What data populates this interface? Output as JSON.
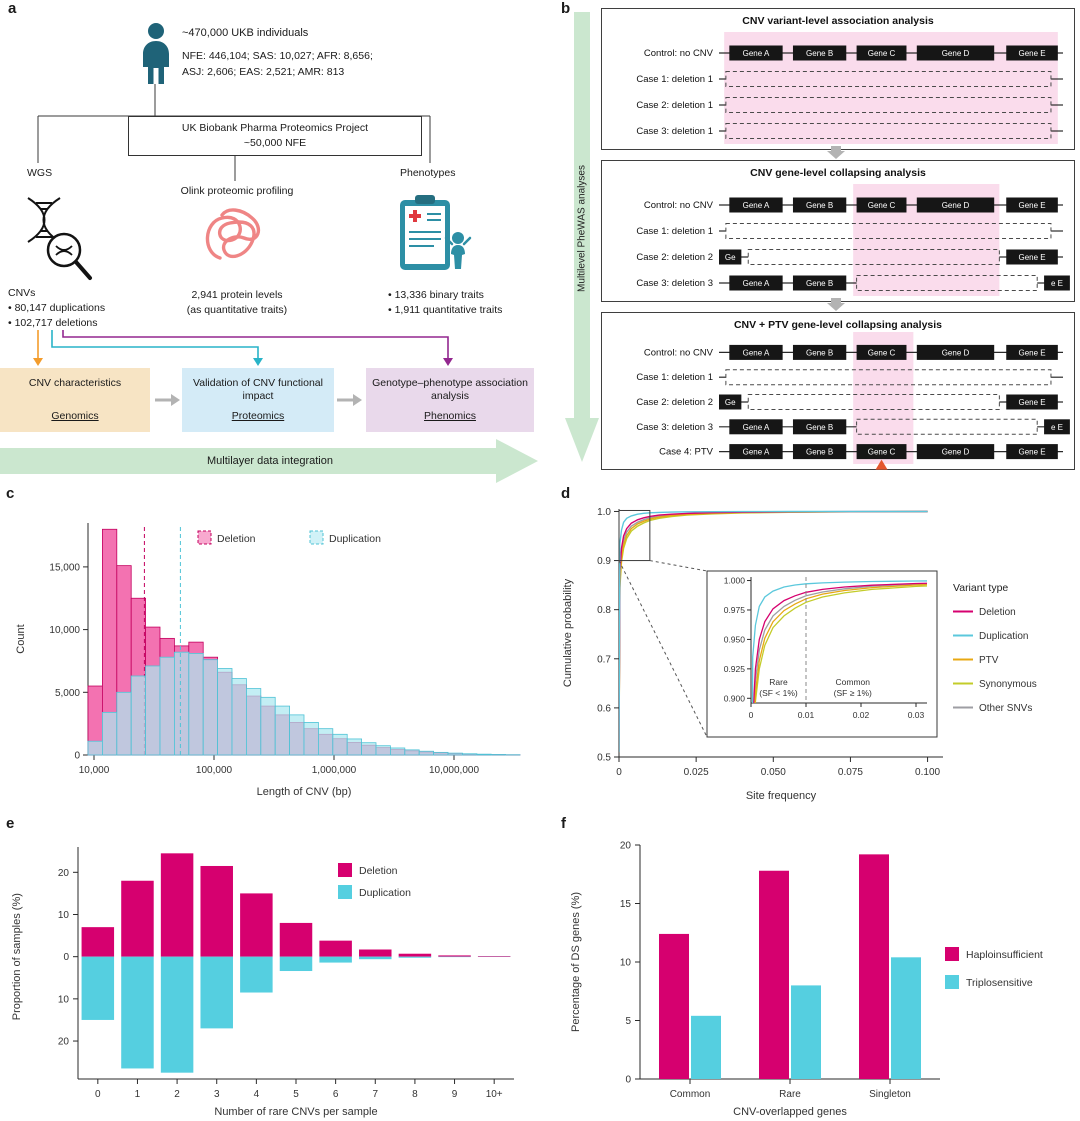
{
  "colors": {
    "magenta": "#d6006f",
    "cyan": "#55cfe0",
    "highlight_pink": "#fadcec",
    "green_arrow": "#cbe7cf",
    "orange_flow": "#f39c2c",
    "teal_flow": "#29b4c8",
    "purple_flow": "#93278f",
    "genomics_box": "#f7e4c4",
    "proteomics_box": "#d4ebf7",
    "phenomics_box": "#e9d9eb"
  },
  "panels": {
    "a": {
      "label": "a",
      "cohort_title": "~470,000 UKB individuals",
      "cohort_line1": "NFE: 446,104; SAS: 10,027; AFR: 8,656;",
      "cohort_line2": "ASJ: 2,606; EAS: 2,521; AMR: 813",
      "ppp_line1": "UK Biobank Pharma Proteomics Project",
      "ppp_line2": "~50,000 NFE",
      "wgs_label": "WGS",
      "olink_label": "Olink proteomic profiling",
      "phenotypes_label": "Phenotypes",
      "wgs_stats": [
        "CNVs",
        "• 80,147 duplications",
        "• 102,717 deletions"
      ],
      "olink_stats": [
        "2,941 protein levels",
        "(as quantitative traits)"
      ],
      "phenotype_stats": [
        "• 13,336 binary traits",
        "• 1,911 quantitative traits"
      ],
      "flow_boxes": [
        {
          "title": "CNV characteristics",
          "subtitle": "Genomics"
        },
        {
          "title": "Validation of CNV functional impact",
          "subtitle": "Proteomics"
        },
        {
          "title": "Genotype–phenotype association analysis",
          "subtitle": "Phenomics"
        }
      ],
      "integration_arrow": "Multilayer data integration"
    },
    "b": {
      "label": "b",
      "side_arrow_label": "Multilevel PheWAS analyses",
      "boxes": [
        {
          "title": "CNV variant-level association analysis",
          "highlight": [
            0.015,
            0.985
          ],
          "rows": [
            {
              "label": "Control: no CNV",
              "genes": [
                {
                  "label": "Gene A",
                  "x": 0.03,
                  "w": 0.155
                },
                {
                  "label": "Gene B",
                  "x": 0.215,
                  "w": 0.155
                },
                {
                  "label": "Gene C",
                  "x": 0.4,
                  "w": 0.145
                },
                {
                  "label": "Gene D",
                  "x": 0.575,
                  "w": 0.225
                },
                {
                  "label": "Gene E",
                  "x": 0.835,
                  "w": 0.15
                }
              ]
            },
            {
              "label": "Case 1: deletion 1",
              "del": [
                0.02,
                0.965
              ]
            },
            {
              "label": "Case 2: deletion 1",
              "del": [
                0.02,
                0.965
              ]
            },
            {
              "label": "Case 3: deletion 1",
              "del": [
                0.02,
                0.965
              ]
            }
          ]
        },
        {
          "title": "CNV gene-level collapsing analysis",
          "highlight": [
            0.39,
            0.815
          ],
          "rows": [
            {
              "label": "Control: no CNV",
              "genes": [
                {
                  "label": "Gene A",
                  "x": 0.03,
                  "w": 0.155
                },
                {
                  "label": "Gene B",
                  "x": 0.215,
                  "w": 0.155
                },
                {
                  "label": "Gene C",
                  "x": 0.4,
                  "w": 0.145
                },
                {
                  "label": "Gene D",
                  "x": 0.575,
                  "w": 0.225
                },
                {
                  "label": "Gene E",
                  "x": 0.835,
                  "w": 0.15
                }
              ]
            },
            {
              "label": "Case 1: deletion 1",
              "del": [
                0.02,
                0.965
              ]
            },
            {
              "label": "Case 2: deletion 2",
              "del": [
                0.085,
                0.815
              ],
              "genes": [
                {
                  "label": "Ge",
                  "x": 0.0,
                  "w": 0.065
                },
                {
                  "label": "Gene E",
                  "x": 0.835,
                  "w": 0.15
                }
              ]
            },
            {
              "label": "Case 3: deletion 3",
              "del": [
                0.4,
                0.925
              ],
              "genes": [
                {
                  "label": "Gene A",
                  "x": 0.03,
                  "w": 0.155
                },
                {
                  "label": "Gene B",
                  "x": 0.215,
                  "w": 0.155
                },
                {
                  "label": "e E",
                  "x": 0.945,
                  "w": 0.075
                }
              ]
            }
          ]
        },
        {
          "title": "CNV + PTV gene-level collapsing analysis",
          "highlight": [
            0.39,
            0.565
          ],
          "rows": [
            {
              "label": "Control: no CNV",
              "genes": [
                {
                  "label": "Gene A",
                  "x": 0.03,
                  "w": 0.155
                },
                {
                  "label": "Gene B",
                  "x": 0.215,
                  "w": 0.155
                },
                {
                  "label": "Gene C",
                  "x": 0.4,
                  "w": 0.145
                },
                {
                  "label": "Gene D",
                  "x": 0.575,
                  "w": 0.225
                },
                {
                  "label": "Gene E",
                  "x": 0.835,
                  "w": 0.15
                }
              ]
            },
            {
              "label": "Case 1: deletion 1",
              "del": [
                0.02,
                0.965
              ]
            },
            {
              "label": "Case 2: deletion 2",
              "del": [
                0.085,
                0.815
              ],
              "genes": [
                {
                  "label": "Ge",
                  "x": 0.0,
                  "w": 0.065
                },
                {
                  "label": "Gene E",
                  "x": 0.835,
                  "w": 0.15
                }
              ]
            },
            {
              "label": "Case 3: deletion 3",
              "del": [
                0.4,
                0.925
              ],
              "genes": [
                {
                  "label": "Gene A",
                  "x": 0.03,
                  "w": 0.155
                },
                {
                  "label": "Gene B",
                  "x": 0.215,
                  "w": 0.155
                },
                {
                  "label": "e E",
                  "x": 0.945,
                  "w": 0.075
                }
              ]
            },
            {
              "label": "Case 4: PTV",
              "ptv": 0.4725,
              "genes": [
                {
                  "label": "Gene A",
                  "x": 0.03,
                  "w": 0.155
                },
                {
                  "label": "Gene B",
                  "x": 0.215,
                  "w": 0.155
                },
                {
                  "label": "Gene C",
                  "x": 0.4,
                  "w": 0.145
                },
                {
                  "label": "Gene D",
                  "x": 0.575,
                  "w": 0.225
                },
                {
                  "label": "Gene E",
                  "x": 0.835,
                  "w": 0.15
                }
              ]
            }
          ]
        }
      ]
    },
    "c": {
      "label": "c"
    },
    "d": {
      "label": "d"
    },
    "e": {
      "label": "e"
    },
    "f": {
      "label": "f"
    }
  },
  "chart_data": [
    {
      "id": "cnv-length-histogram",
      "panel": "c",
      "type": "histogram",
      "xlabel": "Length of CNV (bp)",
      "ylabel": "Count",
      "x_scale": "log10",
      "bin_start_log10": 3.95,
      "bin_width_log10": 0.12,
      "y_max": 18500,
      "x_ticks": [
        {
          "log10": 4,
          "label": "10,000"
        },
        {
          "log10": 5,
          "label": "100,000"
        },
        {
          "log10": 6,
          "label": "1,000,000"
        },
        {
          "log10": 7,
          "label": "10,000,000"
        }
      ],
      "y_ticks": [
        {
          "value": 0,
          "label": "0"
        },
        {
          "value": 5000,
          "label": "5,000"
        },
        {
          "value": 10000,
          "label": "10,000"
        },
        {
          "value": 15000,
          "label": "15,000"
        }
      ],
      "series": [
        {
          "name": "Deletion",
          "fill": "#f263a8",
          "stroke": "#c3005f",
          "opacity": 0.9,
          "median_log10": 4.42,
          "values": [
            5500,
            18000,
            15100,
            12500,
            10200,
            9300,
            8700,
            9000,
            7800,
            6600,
            5600,
            4700,
            3900,
            3200,
            2600,
            2100,
            1650,
            1300,
            1000,
            780,
            590,
            440,
            330,
            240,
            170,
            120,
            80,
            50,
            30,
            15
          ]
        },
        {
          "name": "Duplication",
          "fill": "#ace7f0",
          "stroke": "#4fc3d6",
          "opacity": 0.72,
          "median_log10": 4.72,
          "values": [
            1100,
            3400,
            5000,
            6300,
            7100,
            7800,
            8200,
            8100,
            7600,
            6900,
            6100,
            5300,
            4600,
            3900,
            3200,
            2600,
            2100,
            1650,
            1280,
            980,
            740,
            560,
            410,
            300,
            210,
            150,
            100,
            65,
            40,
            20
          ]
        }
      ]
    },
    {
      "id": "site-frequency-cumulative",
      "panel": "d",
      "type": "line",
      "xlabel": "Site frequency",
      "ylabel": "Cumulative probability",
      "legend_title": "Variant type",
      "x_ticks": [
        {
          "value": 0,
          "label": "0"
        },
        {
          "value": 0.025,
          "label": "0.025"
        },
        {
          "value": 0.05,
          "label": "0.050"
        },
        {
          "value": 0.075,
          "label": "0.075"
        },
        {
          "value": 0.1,
          "label": "0.100"
        }
      ],
      "y_ticks": [
        {
          "value": 1.0,
          "label": "1.0"
        },
        {
          "value": 0.9,
          "label": "0.9"
        },
        {
          "value": 0.8,
          "label": "0.8"
        },
        {
          "value": 0.7,
          "label": "0.7"
        },
        {
          "value": 0.6,
          "label": "0.6"
        },
        {
          "value": 0.5,
          "label": "0.5"
        }
      ],
      "x": [
        0,
        0.0003,
        0.0008,
        0.0015,
        0.0025,
        0.004,
        0.006,
        0.008,
        0.01,
        0.013,
        0.017,
        0.022,
        0.03,
        0.04,
        0.055,
        0.075,
        0.1
      ],
      "series": [
        {
          "name": "Deletion",
          "color": "#d6006f",
          "y": [
            0.51,
            0.88,
            0.925,
            0.95,
            0.965,
            0.976,
            0.983,
            0.987,
            0.99,
            0.9925,
            0.9945,
            0.996,
            0.9975,
            0.9985,
            0.9992,
            0.9997,
            1.0
          ]
        },
        {
          "name": "Duplication",
          "color": "#5bc8dc",
          "y": [
            0.51,
            0.935,
            0.962,
            0.978,
            0.986,
            0.991,
            0.9945,
            0.9962,
            0.9972,
            0.998,
            0.9987,
            0.9992,
            0.9996,
            0.9998,
            0.9999,
            1.0,
            1.0
          ]
        },
        {
          "name": "PTV",
          "color": "#e8a813",
          "y": [
            0.51,
            0.855,
            0.905,
            0.932,
            0.951,
            0.965,
            0.9745,
            0.98,
            0.9845,
            0.9885,
            0.9915,
            0.994,
            0.9962,
            0.9978,
            0.9988,
            0.9996,
            1.0
          ]
        },
        {
          "name": "Synonymous",
          "color": "#c3cc2a",
          "y": [
            0.51,
            0.845,
            0.897,
            0.925,
            0.945,
            0.96,
            0.97,
            0.9765,
            0.9815,
            0.986,
            0.9895,
            0.9925,
            0.995,
            0.997,
            0.9983,
            0.9993,
            1.0
          ]
        },
        {
          "name": "Other SNVs",
          "color": "#9e9ea3",
          "y": [
            0.51,
            0.87,
            0.915,
            0.941,
            0.958,
            0.97,
            0.978,
            0.9832,
            0.987,
            0.9903,
            0.993,
            0.9952,
            0.997,
            0.9982,
            0.999,
            0.9996,
            1.0
          ]
        }
      ],
      "draw_order": [
        3,
        4,
        2,
        0,
        1
      ],
      "inset": {
        "x_max": 0.032,
        "y_min": 0.896,
        "x_ticks": [
          {
            "value": 0,
            "label": "0"
          },
          {
            "value": 0.01,
            "label": "0.01"
          },
          {
            "value": 0.02,
            "label": "0.02"
          },
          {
            "value": 0.03,
            "label": "0.03"
          }
        ],
        "y_ticks": [
          {
            "value": 1.0,
            "label": "1.000"
          },
          {
            "value": 0.975,
            "label": "0.975"
          },
          {
            "value": 0.95,
            "label": "0.950"
          },
          {
            "value": 0.925,
            "label": "0.925"
          },
          {
            "value": 0.9,
            "label": "0.900"
          }
        ],
        "divider_x": 0.01,
        "rare_label": [
          "Rare",
          "(SF < 1%)"
        ],
        "common_label": [
          "Common",
          "(SF ≥ 1%)"
        ]
      }
    },
    {
      "id": "rare-cnvs-per-sample",
      "panel": "e",
      "type": "bar-mirrored",
      "xlabel": "Number of rare CNVs per sample",
      "ylabel": "Proportion of samples (%)",
      "categories": [
        "0",
        "1",
        "2",
        "3",
        "4",
        "5",
        "6",
        "7",
        "8",
        "9",
        "10+"
      ],
      "y_ticks": [
        {
          "value": 20,
          "label": "20"
        },
        {
          "value": 10,
          "label": "10"
        },
        {
          "value": 0,
          "label": "0"
        },
        {
          "value": -10,
          "label": "10"
        },
        {
          "value": -20,
          "label": "20"
        }
      ],
      "series": [
        {
          "name": "Deletion",
          "direction": "up",
          "color": "#d6006f",
          "values": [
            7,
            18,
            24.5,
            21.5,
            15,
            8,
            3.8,
            1.7,
            0.7,
            0.3,
            0.15
          ]
        },
        {
          "name": "Duplication",
          "direction": "down",
          "color": "#55cfe0",
          "values": [
            15,
            26.5,
            27.5,
            17,
            8.5,
            3.4,
            1.4,
            0.6,
            0.25,
            0.1,
            0.05
          ]
        }
      ]
    },
    {
      "id": "ds-genes-percentage",
      "panel": "f",
      "type": "bar-grouped",
      "xlabel": "CNV-overlapped genes",
      "ylabel": "Percentage of DS genes (%)",
      "categories": [
        "Common",
        "Rare",
        "Singleton"
      ],
      "ylim": [
        0,
        20
      ],
      "y_ticks": [
        {
          "value": 0,
          "label": "0"
        },
        {
          "value": 5,
          "label": "5"
        },
        {
          "value": 10,
          "label": "10"
        },
        {
          "value": 15,
          "label": "15"
        },
        {
          "value": 20,
          "label": "20"
        }
      ],
      "series": [
        {
          "name": "Haploinsufficient",
          "color": "#d6006f",
          "values": [
            12.4,
            17.8,
            19.2
          ]
        },
        {
          "name": "Triplosensitive",
          "color": "#55cfe0",
          "values": [
            5.4,
            8.0,
            10.4
          ]
        }
      ]
    }
  ]
}
